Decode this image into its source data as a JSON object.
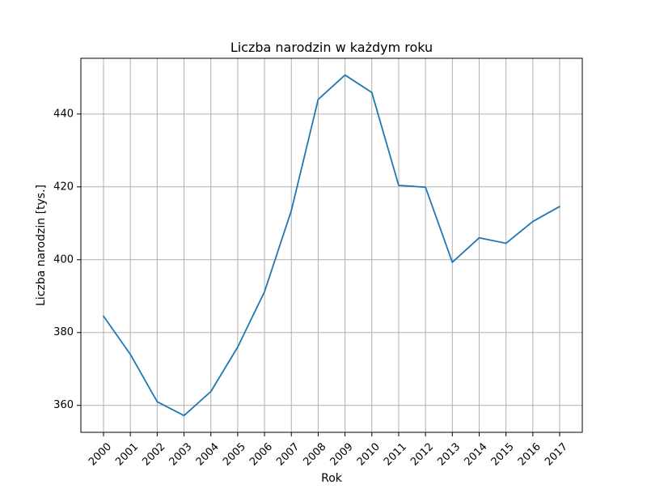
{
  "chart_data": {
    "type": "line",
    "title": "Liczba narodzin w każdym roku",
    "xlabel": "Rok",
    "ylabel": "Liczba narodzin [tys.]",
    "categories": [
      "2000",
      "2001",
      "2002",
      "2003",
      "2004",
      "2005",
      "2006",
      "2007",
      "2008",
      "2009",
      "2010",
      "2011",
      "2012",
      "2013",
      "2014",
      "2015",
      "2016",
      "2017"
    ],
    "series": [
      {
        "values": [
          384.5,
          374.0,
          361.0,
          357.2,
          363.8,
          376.0,
          391.2,
          413.5,
          444.0,
          450.7,
          445.9,
          420.4,
          419.9,
          399.3,
          406.0,
          404.5,
          410.5,
          414.6
        ],
        "color": "#1f77b4"
      }
    ],
    "ylim": [
      352.6,
      455.3
    ],
    "yticks": [
      360,
      380,
      400,
      420,
      440
    ],
    "grid": true,
    "legend": "none"
  }
}
